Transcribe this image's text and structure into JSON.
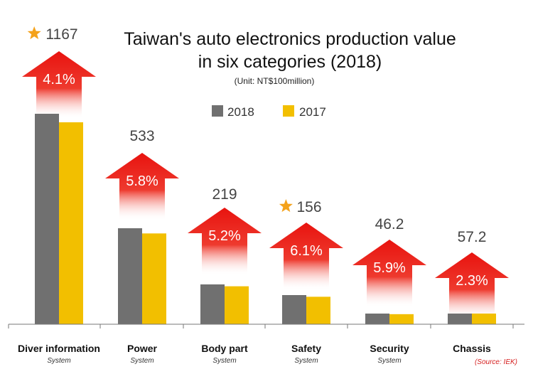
{
  "chart_data": {
    "type": "bar",
    "title_lines": [
      "Taiwan's auto electronics production value",
      "in six categories (2018)"
    ],
    "unit": "(Unit: NT$100million)",
    "source": "(Source: IEK)",
    "categories": [
      "Diver information",
      "Power",
      "Body part",
      "Safety",
      "Security",
      "Chassis"
    ],
    "category_sub": [
      "System",
      "System",
      "System",
      "System",
      "System",
      ""
    ],
    "series": [
      {
        "name": "2018",
        "color": "#707070",
        "values": [
          1167,
          533,
          219,
          156,
          46.2,
          57.2
        ]
      },
      {
        "name": "2017",
        "color": "#f2bf00",
        "values": [
          1121,
          504,
          208,
          147,
          43.6,
          55.9
        ]
      }
    ],
    "value_labels": [
      "1167",
      "533",
      "219",
      "156",
      "46.2",
      "57.2"
    ],
    "growth_labels": [
      "4.1%",
      "5.8%",
      "5.2%",
      "6.1%",
      "5.9%",
      "2.3%"
    ],
    "star_categories": [
      0,
      3
    ],
    "scale": "nonlinear",
    "grid": false,
    "legend_position": "top-center",
    "arrow_color": "#e8130f",
    "star_color": "#f4a21b"
  }
}
